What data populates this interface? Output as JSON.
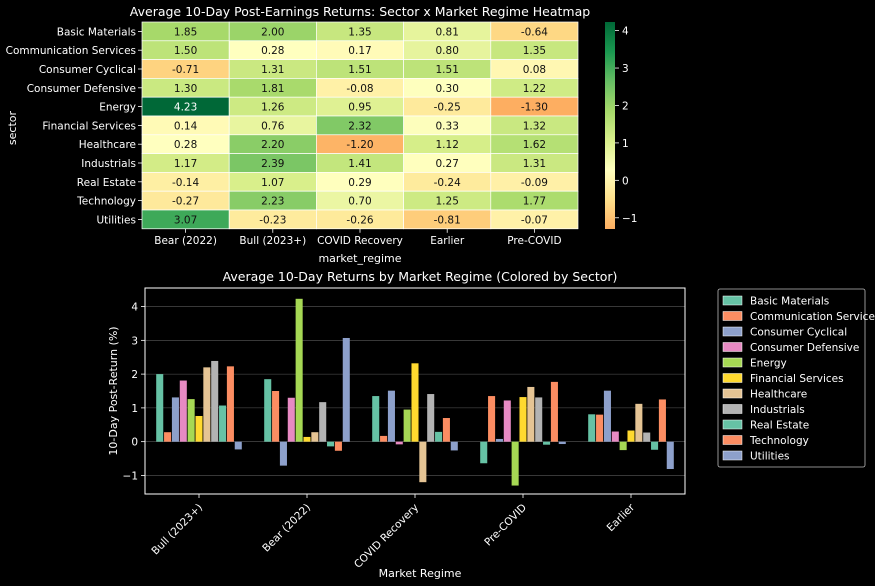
{
  "chart_data": [
    {
      "type": "heatmap",
      "title": "Average 10-Day Post-Earnings Returns: Sector x Market Regime Heatmap",
      "xlabel": "market_regime",
      "ylabel": "sector",
      "columns": [
        "Bear (2022)",
        "Bull (2023+)",
        "COVID Recovery",
        "Earlier",
        "Pre-COVID"
      ],
      "rows": [
        "Basic Materials",
        "Communication Services",
        "Consumer Cyclical",
        "Consumer Defensive",
        "Energy",
        "Financial Services",
        "Healthcare",
        "Industrials",
        "Real Estate",
        "Technology",
        "Utilities"
      ],
      "values": [
        [
          1.85,
          2.0,
          1.35,
          0.81,
          -0.64
        ],
        [
          1.5,
          0.28,
          0.17,
          0.8,
          1.35
        ],
        [
          -0.71,
          1.31,
          1.51,
          1.51,
          0.08
        ],
        [
          1.3,
          1.81,
          -0.08,
          0.3,
          1.22
        ],
        [
          4.23,
          1.26,
          0.95,
          -0.25,
          -1.3
        ],
        [
          0.14,
          0.76,
          2.32,
          0.33,
          1.32
        ],
        [
          0.28,
          2.2,
          -1.2,
          1.12,
          1.62
        ],
        [
          1.17,
          2.39,
          1.41,
          0.27,
          1.31
        ],
        [
          -0.14,
          1.07,
          0.29,
          -0.24,
          -0.09
        ],
        [
          -0.27,
          2.23,
          0.7,
          1.25,
          1.77
        ],
        [
          3.07,
          -0.23,
          -0.26,
          -0.81,
          -0.07
        ]
      ],
      "colorbar": {
        "min": -1.3,
        "max": 4.23,
        "ticks": [
          4,
          3,
          2,
          1,
          0,
          -1
        ]
      },
      "colormap": [
        "#fdae61",
        "#fee08b",
        "#ffffbf",
        "#d9ef8b",
        "#a6d96a",
        "#66bd63",
        "#1a9850",
        "#006837"
      ]
    },
    {
      "type": "bar",
      "title": "Average 10-Day Returns by Market Regime (Colored by Sector)",
      "xlabel": "Market Regime",
      "ylabel": "10-Day Post-Return (%)",
      "categories": [
        "Bull (2023+)",
        "Bear (2022)",
        "COVID Recovery",
        "Pre-COVID",
        "Earlier"
      ],
      "ylim": [
        -1.55,
        4.55
      ],
      "yticks": [
        -1,
        0,
        1,
        2,
        3,
        4
      ],
      "grid": true,
      "legend_position": "outside-right",
      "series": [
        {
          "name": "Basic Materials",
          "color": "#66c2a5",
          "values": [
            2.0,
            1.85,
            1.35,
            -0.64,
            0.81
          ]
        },
        {
          "name": "Communication Services",
          "color": "#fc8d62",
          "values": [
            0.28,
            1.5,
            0.17,
            1.35,
            0.8
          ]
        },
        {
          "name": "Consumer Cyclical",
          "color": "#8da0cb",
          "values": [
            1.31,
            -0.71,
            1.51,
            0.08,
            1.51
          ]
        },
        {
          "name": "Consumer Defensive",
          "color": "#e78ac3",
          "values": [
            1.81,
            1.3,
            -0.08,
            1.22,
            0.3
          ]
        },
        {
          "name": "Energy",
          "color": "#a6d854",
          "values": [
            1.26,
            4.23,
            0.95,
            -1.3,
            -0.25
          ]
        },
        {
          "name": "Financial Services",
          "color": "#ffd92f",
          "values": [
            0.76,
            0.14,
            2.32,
            1.32,
            0.33
          ]
        },
        {
          "name": "Healthcare",
          "color": "#e5c494",
          "values": [
            2.2,
            0.28,
            -1.2,
            1.62,
            1.12
          ]
        },
        {
          "name": "Industrials",
          "color": "#b3b3b3",
          "values": [
            2.39,
            1.17,
            1.41,
            1.31,
            0.27
          ]
        },
        {
          "name": "Real Estate",
          "color": "#66c2a5",
          "values": [
            1.07,
            -0.14,
            0.29,
            -0.09,
            -0.24
          ]
        },
        {
          "name": "Technology",
          "color": "#fc8d62",
          "values": [
            2.23,
            -0.27,
            0.7,
            1.77,
            1.25
          ]
        },
        {
          "name": "Utilities",
          "color": "#8da0cb",
          "values": [
            -0.23,
            3.07,
            -0.26,
            -0.07,
            -0.81
          ]
        }
      ]
    }
  ]
}
